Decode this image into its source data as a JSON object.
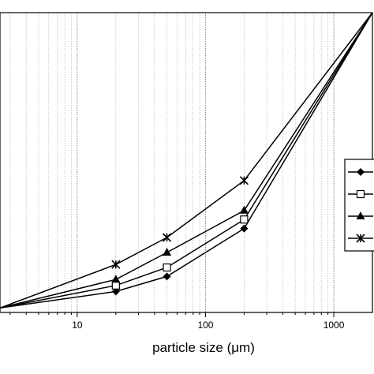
{
  "chart_data": {
    "type": "line",
    "title": "",
    "xlabel": "particle size (μm)",
    "ylabel": "",
    "xscale": "log",
    "xlim": [
      2.5,
      2000
    ],
    "ylim": [
      0,
      100
    ],
    "xticks": [
      10,
      100,
      1000
    ],
    "xtick_labels": [
      "10",
      "100",
      "1000"
    ],
    "grid": "vertical minor and major (dotted)",
    "legend_placement": "right",
    "series": [
      {
        "marker": "diamond-filled",
        "x": [
          2.5,
          20,
          50,
          200,
          2000
        ],
        "y": [
          1.5,
          7,
          12,
          28,
          100
        ]
      },
      {
        "marker": "square-open",
        "x": [
          2.5,
          20,
          50,
          200,
          2000
        ],
        "y": [
          1.5,
          9,
          15,
          31,
          100
        ]
      },
      {
        "marker": "triangle-filled",
        "x": [
          2.5,
          20,
          50,
          200,
          2000
        ],
        "y": [
          1.5,
          11,
          20,
          34,
          100
        ]
      },
      {
        "marker": "x-star",
        "x": [
          2.5,
          20,
          50,
          200,
          2000
        ],
        "y": [
          1.5,
          16,
          25,
          44,
          100
        ]
      }
    ]
  }
}
